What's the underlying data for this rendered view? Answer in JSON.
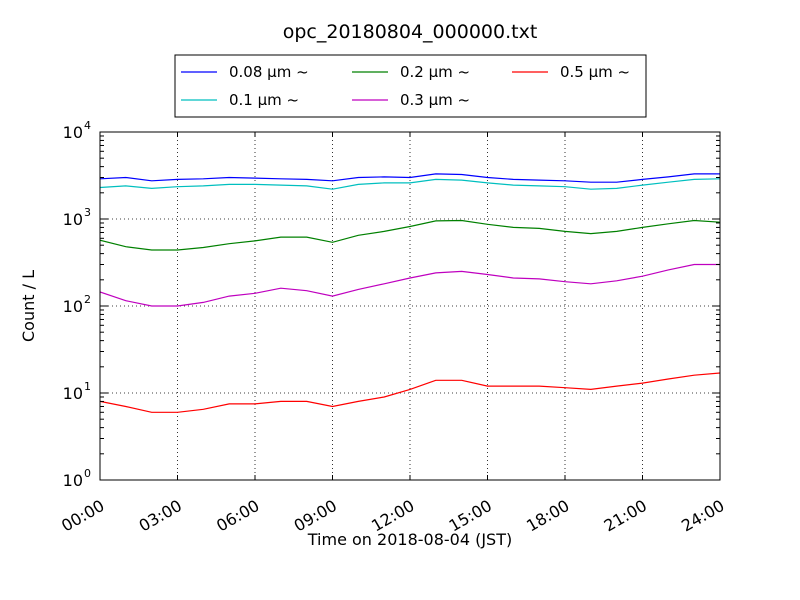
{
  "chart_data": {
    "type": "line",
    "title": "opc_20180804_000000.txt",
    "xlabel": "Time on 2018-08-04 (JST)",
    "ylabel": "Count / L",
    "x_unit": "hours",
    "xlim": [
      0,
      24
    ],
    "ylim": [
      1,
      10000
    ],
    "y_scale": "log",
    "grid": true,
    "legend_position": "top-center",
    "x_ticks": [
      0,
      3,
      6,
      9,
      12,
      15,
      18,
      21,
      24
    ],
    "x_tick_labels": [
      "00:00",
      "03:00",
      "06:00",
      "09:00",
      "12:00",
      "15:00",
      "18:00",
      "21:00",
      "24:00"
    ],
    "y_ticks": [
      1,
      10,
      100,
      1000,
      10000
    ],
    "y_tick_labels": [
      {
        "base": "10",
        "exp": "0"
      },
      {
        "base": "10",
        "exp": "1"
      },
      {
        "base": "10",
        "exp": "2"
      },
      {
        "base": "10",
        "exp": "3"
      },
      {
        "base": "10",
        "exp": "4"
      }
    ],
    "series": [
      {
        "name": "0.08 μm ~",
        "color": "#0000ff",
        "x": [
          0,
          1,
          2,
          3,
          4,
          5,
          6,
          7,
          8,
          9,
          10,
          11,
          12,
          13,
          14,
          15,
          16,
          17,
          18,
          19,
          20,
          21,
          22,
          23,
          24
        ],
        "y": [
          2900,
          3000,
          2750,
          2850,
          2900,
          3000,
          2950,
          2900,
          2850,
          2750,
          3000,
          3050,
          3000,
          3300,
          3250,
          3000,
          2850,
          2800,
          2750,
          2650,
          2650,
          2850,
          3050,
          3300,
          3300
        ]
      },
      {
        "name": "0.1 μm ~",
        "color": "#00bfbf",
        "x": [
          0,
          1,
          2,
          3,
          4,
          5,
          6,
          7,
          8,
          9,
          10,
          11,
          12,
          13,
          14,
          15,
          16,
          17,
          18,
          19,
          20,
          21,
          22,
          23,
          24
        ],
        "y": [
          2300,
          2400,
          2250,
          2350,
          2400,
          2500,
          2500,
          2450,
          2400,
          2200,
          2500,
          2600,
          2600,
          2850,
          2800,
          2600,
          2450,
          2400,
          2350,
          2200,
          2250,
          2450,
          2650,
          2850,
          2900
        ]
      },
      {
        "name": "0.2 μm ~",
        "color": "#008000",
        "x": [
          0,
          1,
          2,
          3,
          4,
          5,
          6,
          7,
          8,
          9,
          10,
          11,
          12,
          13,
          14,
          15,
          16,
          17,
          18,
          19,
          20,
          21,
          22,
          23,
          24
        ],
        "y": [
          570,
          480,
          440,
          440,
          470,
          520,
          560,
          620,
          620,
          540,
          650,
          720,
          820,
          950,
          960,
          870,
          800,
          780,
          720,
          680,
          720,
          800,
          880,
          960,
          920
        ]
      },
      {
        "name": "0.3 μm ~",
        "color": "#bf00bf",
        "x": [
          0,
          1,
          2,
          3,
          4,
          5,
          6,
          7,
          8,
          9,
          10,
          11,
          12,
          13,
          14,
          15,
          16,
          17,
          18,
          19,
          20,
          21,
          22,
          23,
          24
        ],
        "y": [
          145,
          115,
          100,
          100,
          110,
          130,
          140,
          160,
          150,
          130,
          155,
          180,
          210,
          240,
          250,
          230,
          210,
          205,
          190,
          180,
          195,
          220,
          260,
          300,
          300
        ]
      },
      {
        "name": "0.5 μm ~",
        "color": "#ff0000",
        "x": [
          0,
          1,
          2,
          3,
          4,
          5,
          6,
          7,
          8,
          9,
          10,
          11,
          12,
          13,
          14,
          15,
          16,
          17,
          18,
          19,
          20,
          21,
          22,
          23,
          24
        ],
        "y": [
          8,
          7,
          6,
          6,
          6.5,
          7.5,
          7.5,
          8,
          8,
          7,
          8,
          9,
          11,
          14,
          14,
          12,
          12,
          12,
          11.5,
          11,
          12,
          13,
          14.5,
          16,
          17
        ]
      }
    ]
  }
}
